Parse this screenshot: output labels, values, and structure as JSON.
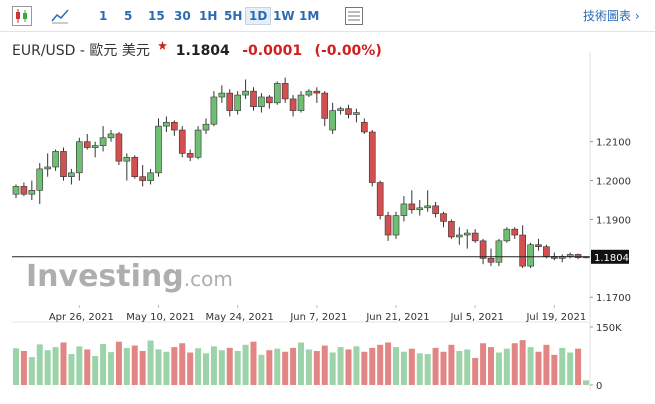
{
  "toolbar": {
    "intervals": [
      "1",
      "5",
      "15",
      "30",
      "1H",
      "5H",
      "1D",
      "1W",
      "1M"
    ],
    "selected": "1D",
    "link": "技術圖表 ›"
  },
  "header": {
    "symbol": "EUR/USD - 歐元 美元",
    "change": -0.0001,
    "change_pct": "(-0.00%)"
  },
  "watermark": [
    "Investing",
    ".com"
  ],
  "chart_data": {
    "type": "candlestick",
    "categories": [
      null,
      null,
      null,
      null,
      null,
      null,
      null,
      null,
      "Apr 26, 2021",
      null,
      null,
      null,
      null,
      null,
      null,
      null,
      null,
      null,
      "May 10, 2021",
      null,
      null,
      null,
      null,
      null,
      null,
      null,
      null,
      null,
      "May 24, 2021",
      null,
      null,
      null,
      null,
      null,
      null,
      null,
      null,
      null,
      "Jun 7, 2021",
      null,
      null,
      null,
      null,
      null,
      null,
      null,
      null,
      null,
      "Jun 21, 2021",
      null,
      null,
      null,
      null,
      null,
      null,
      null,
      null,
      null,
      "Jul 5, 2021",
      null,
      null,
      null,
      null,
      null,
      null,
      null,
      null,
      null,
      "Jul 19, 2021",
      null,
      null,
      null,
      null
    ],
    "open": [
      1.1965,
      1.1985,
      1.1965,
      1.1975,
      1.203,
      1.2035,
      1.2075,
      1.201,
      1.202,
      1.21,
      1.2085,
      1.209,
      1.211,
      1.212,
      1.205,
      1.206,
      1.201,
      1.2,
      1.202,
      1.214,
      1.215,
      1.213,
      1.207,
      1.206,
      1.213,
      1.2145,
      1.2215,
      1.2225,
      1.218,
      1.222,
      1.223,
      1.219,
      1.2215,
      1.22,
      1.225,
      1.221,
      1.218,
      1.222,
      1.223,
      1.2225,
      1.213,
      1.218,
      1.2185,
      1.217,
      1.215,
      1.2125,
      1.1995,
      1.191,
      1.186,
      1.191,
      1.194,
      1.1925,
      1.193,
      1.1935,
      1.1915,
      1.1895,
      1.1855,
      1.186,
      1.1865,
      1.1845,
      1.18,
      1.179,
      1.1845,
      1.1875,
      1.186,
      1.178,
      1.1835,
      1.183,
      1.1805,
      1.18,
      1.1805,
      1.181,
      1.1802
    ],
    "high": [
      1.199,
      1.1995,
      1.2,
      1.2045,
      1.207,
      1.208,
      1.2085,
      1.203,
      1.211,
      1.212,
      1.21,
      1.214,
      1.213,
      1.2125,
      1.207,
      1.2065,
      1.204,
      1.203,
      1.216,
      1.2165,
      1.2155,
      1.214,
      1.208,
      1.214,
      1.216,
      1.223,
      1.2245,
      1.2235,
      1.223,
      1.226,
      1.224,
      1.2225,
      1.222,
      1.2255,
      1.2265,
      1.222,
      1.223,
      1.2235,
      1.224,
      1.223,
      1.22,
      1.219,
      1.2195,
      1.2185,
      1.216,
      1.213,
      1.2,
      1.192,
      1.192,
      1.196,
      1.1975,
      1.195,
      1.1975,
      1.1945,
      1.192,
      1.19,
      1.188,
      1.1875,
      1.1875,
      1.185,
      1.1825,
      1.185,
      1.188,
      1.188,
      1.1885,
      1.184,
      1.185,
      1.1835,
      1.1815,
      1.181,
      1.1815,
      1.1812,
      1.1806
    ],
    "low": [
      1.1955,
      1.196,
      1.195,
      1.194,
      1.201,
      1.2025,
      1.2,
      1.199,
      1.2,
      1.208,
      1.206,
      1.2075,
      1.21,
      1.204,
      1.2,
      1.2005,
      1.1985,
      1.199,
      1.201,
      1.2125,
      1.2115,
      1.206,
      1.205,
      1.2055,
      1.212,
      1.214,
      1.22,
      1.2165,
      1.217,
      1.221,
      1.218,
      1.2175,
      1.2185,
      1.2195,
      1.22,
      1.2165,
      1.2175,
      1.2215,
      1.22,
      1.214,
      1.212,
      1.217,
      1.216,
      1.215,
      1.212,
      1.1985,
      1.19,
      1.1845,
      1.185,
      1.1895,
      1.1915,
      1.191,
      1.192,
      1.1905,
      1.188,
      1.185,
      1.1835,
      1.1825,
      1.184,
      1.1785,
      1.178,
      1.178,
      1.184,
      1.185,
      1.1775,
      1.1775,
      1.182,
      1.18,
      1.1795,
      1.179,
      1.18,
      1.1798,
      1.18
    ],
    "close": [
      1.1985,
      1.1965,
      1.1975,
      1.203,
      1.2035,
      1.2075,
      1.201,
      1.202,
      1.21,
      1.2085,
      1.209,
      1.211,
      1.212,
      1.205,
      1.206,
      1.201,
      1.2,
      1.202,
      1.214,
      1.215,
      1.213,
      1.207,
      1.206,
      1.213,
      1.2145,
      1.2215,
      1.2225,
      1.218,
      1.222,
      1.223,
      1.219,
      1.2215,
      1.22,
      1.225,
      1.221,
      1.218,
      1.222,
      1.223,
      1.2225,
      1.216,
      1.218,
      1.2185,
      1.217,
      1.2175,
      1.2125,
      1.1995,
      1.191,
      1.186,
      1.191,
      1.194,
      1.1925,
      1.193,
      1.1935,
      1.1915,
      1.1895,
      1.1855,
      1.186,
      1.1865,
      1.1845,
      1.18,
      1.179,
      1.1845,
      1.1875,
      1.186,
      1.178,
      1.1835,
      1.183,
      1.1805,
      1.18,
      1.1805,
      1.181,
      1.1802,
      1.1804
    ],
    "volume": [
      95000,
      88000,
      72000,
      105000,
      90000,
      98000,
      110000,
      80000,
      100000,
      92000,
      75000,
      106000,
      85000,
      112000,
      96000,
      102000,
      88000,
      115000,
      92000,
      86000,
      98000,
      108000,
      84000,
      95000,
      82000,
      100000,
      90000,
      96000,
      88000,
      104000,
      112000,
      78000,
      90000,
      94000,
      86000,
      96000,
      110000,
      92000,
      88000,
      102000,
      84000,
      98000,
      92000,
      100000,
      86000,
      96000,
      104000,
      110000,
      98000,
      86000,
      94000,
      82000,
      80000,
      96000,
      86000,
      104000,
      88000,
      92000,
      70000,
      108000,
      98000,
      84000,
      94000,
      108000,
      116000,
      98000,
      86000,
      104000,
      78000,
      96000,
      84000,
      94000,
      12000
    ],
    "up_color": "#6fbf73",
    "down_color": "#d45050",
    "up_volume_color": "#9dd3a8",
    "down_volume_color": "#e38585",
    "last": 1.1804,
    "ylim": [
      1.168,
      1.2305
    ],
    "yticks": [
      {
        "value": 1.17,
        "label": "1.1700"
      },
      {
        "value": 1.19,
        "label": "1.1900"
      },
      {
        "value": 1.2,
        "label": "1.2000"
      },
      {
        "value": 1.21,
        "label": "1.2100"
      }
    ],
    "volume_lim": [
      0,
      150000
    ],
    "volume_ticks": [
      {
        "value": 0,
        "label": "0"
      },
      {
        "value": 150000,
        "label": "150K"
      }
    ]
  }
}
